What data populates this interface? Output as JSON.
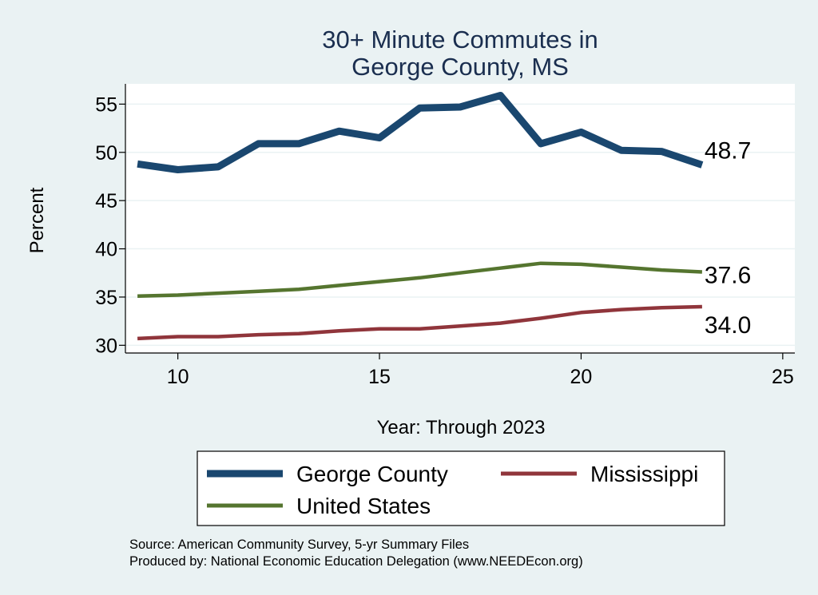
{
  "chart_data": {
    "type": "line",
    "title": [
      "30+ Minute Commutes in",
      "George County, MS"
    ],
    "xlabel": "Year: Through 2023",
    "ylabel": "Percent",
    "xlim": [
      8.7,
      25.3
    ],
    "ylim": [
      29.2,
      57.1
    ],
    "xticks": [
      10,
      15,
      20,
      25
    ],
    "yticks": [
      30,
      35,
      40,
      45,
      50,
      55
    ],
    "grid": true,
    "series": [
      {
        "name": "George County",
        "color": "#1a476f",
        "width": "thick",
        "x": [
          9,
          10,
          11,
          12,
          13,
          14,
          15,
          16,
          17,
          18,
          19,
          20,
          21,
          22,
          23
        ],
        "values": [
          48.8,
          48.2,
          48.5,
          50.9,
          50.9,
          52.2,
          51.5,
          54.6,
          54.7,
          55.9,
          50.9,
          52.1,
          50.2,
          50.1,
          48.7
        ],
        "end_label": "48.7"
      },
      {
        "name": "United States",
        "color": "#55752f",
        "width": "medium",
        "x": [
          9,
          10,
          11,
          12,
          13,
          14,
          15,
          16,
          17,
          18,
          19,
          20,
          21,
          22,
          23
        ],
        "values": [
          35.1,
          35.2,
          35.4,
          35.6,
          35.8,
          36.2,
          36.6,
          37.0,
          37.5,
          38.0,
          38.5,
          38.4,
          38.1,
          37.8,
          37.6
        ],
        "end_label": "37.6"
      },
      {
        "name": "Mississippi",
        "color": "#90353b",
        "width": "medium",
        "x": [
          9,
          10,
          11,
          12,
          13,
          14,
          15,
          16,
          17,
          18,
          19,
          20,
          21,
          22,
          23
        ],
        "values": [
          30.7,
          30.9,
          30.9,
          31.1,
          31.2,
          31.5,
          31.7,
          31.7,
          32.0,
          32.3,
          32.8,
          33.4,
          33.7,
          33.9,
          34.0
        ],
        "end_label": "34.0"
      }
    ],
    "legend": {
      "placement": "bottom",
      "items": [
        "George County",
        "Mississippi",
        "United States"
      ]
    }
  },
  "source_lines": [
    "Source: American Community Survey, 5-yr Summary Files",
    "Produced by: National Economic Education Delegation (www.NEEDEcon.org)"
  ]
}
